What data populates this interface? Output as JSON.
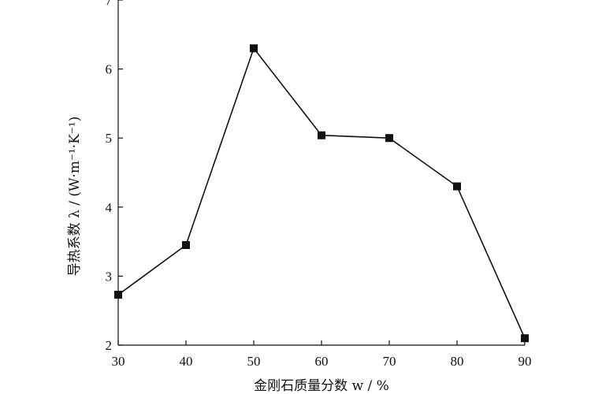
{
  "chart_data": {
    "type": "line",
    "title": "",
    "xlabel": "金刚石质量分数 w / %",
    "ylabel": "导热系数 λ / (W·m⁻¹·K⁻¹)",
    "x": [
      30,
      40,
      50,
      60,
      70,
      80,
      90
    ],
    "series": [
      {
        "values": [
          2.73,
          3.45,
          6.3,
          5.04,
          5.0,
          4.3,
          2.1
        ]
      }
    ],
    "xlim": [
      30,
      90
    ],
    "ylim": [
      2,
      7
    ],
    "xticks": [
      30,
      40,
      50,
      60,
      70,
      80,
      90
    ],
    "yticks": [
      2,
      3,
      4,
      5,
      6,
      7
    ],
    "grid": false,
    "legend": "none",
    "marker": "square",
    "line_color": "#111111",
    "marker_color": "#111111"
  }
}
